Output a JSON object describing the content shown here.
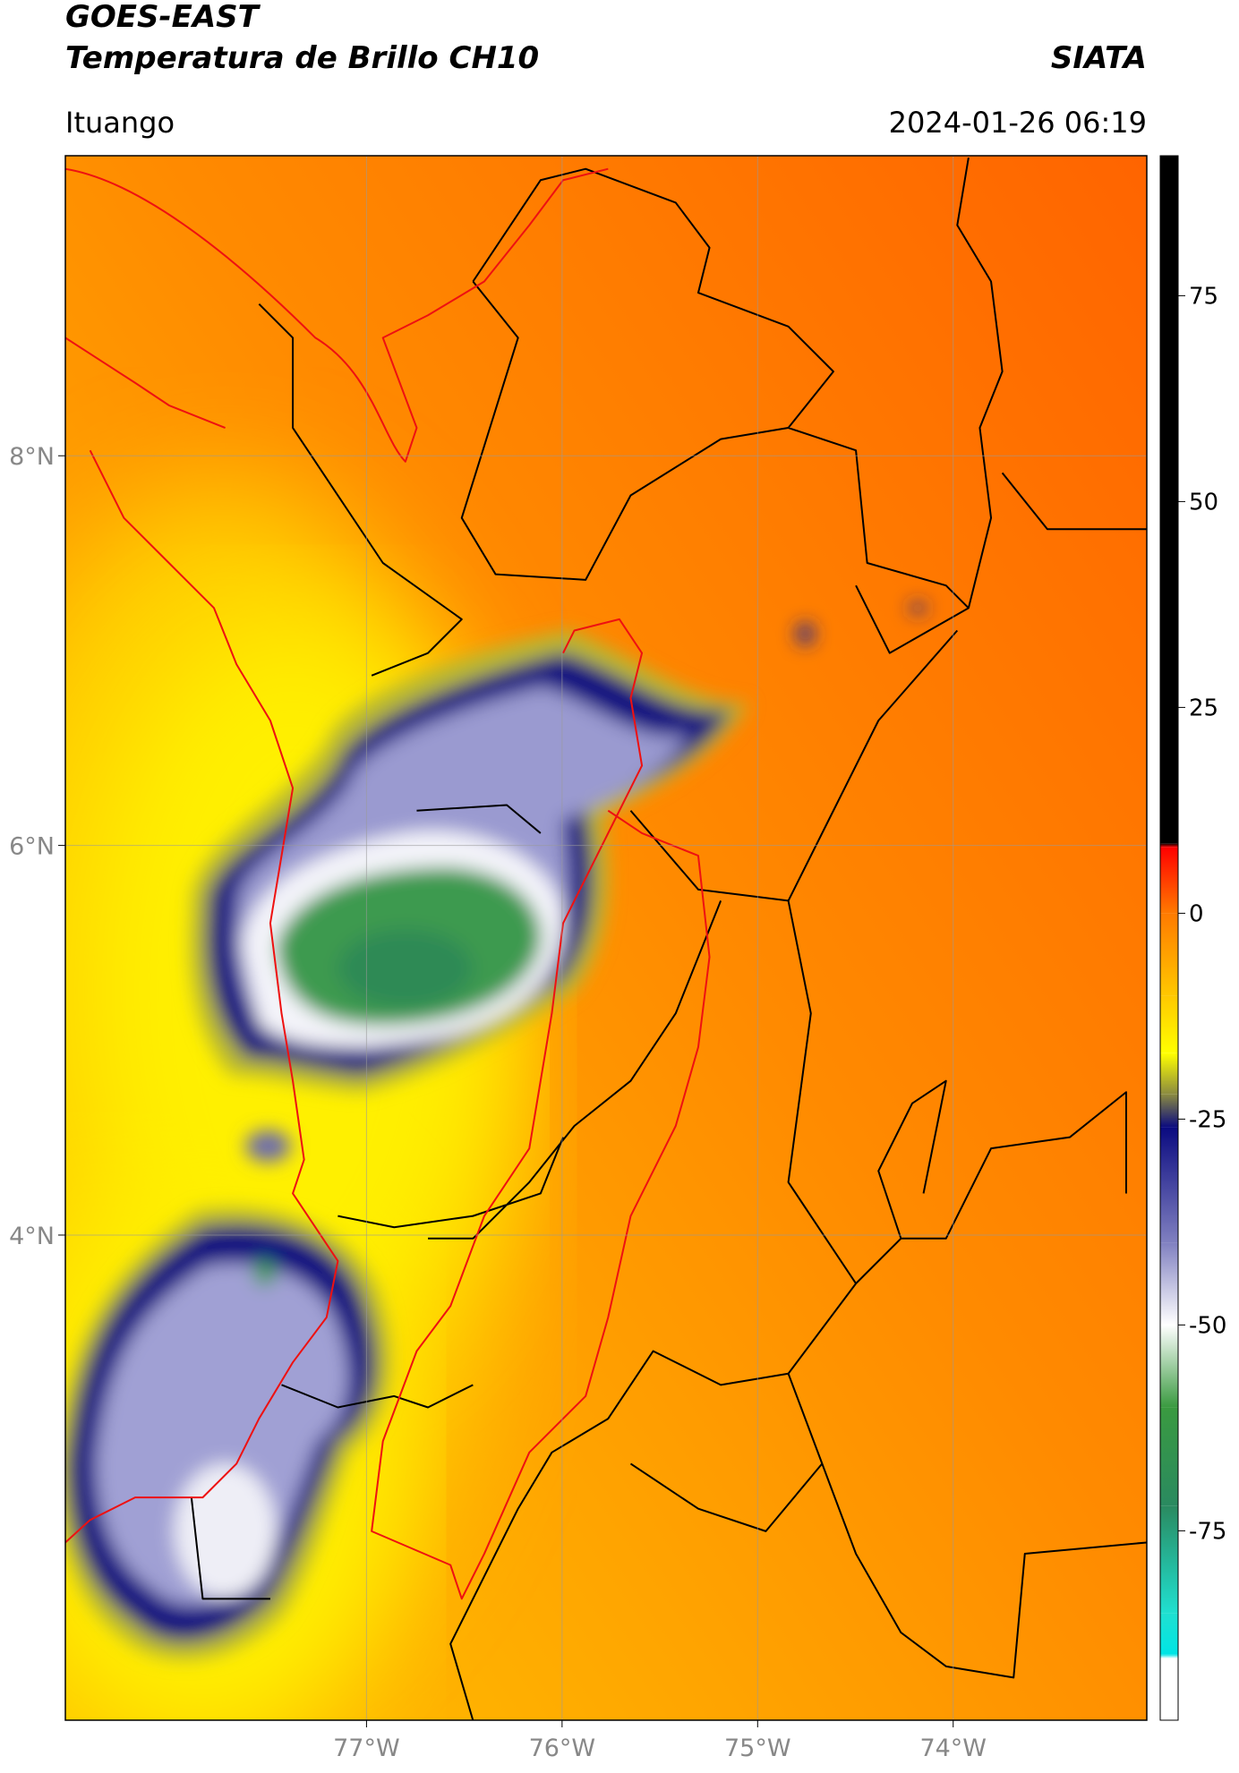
{
  "header": {
    "title_line1": "GOES-EAST",
    "title_line2": "Temperatura de Brillo CH10",
    "source": "SIATA",
    "location": "Ituango",
    "timestamp": "2024-01-26 06:19"
  },
  "map": {
    "xlim": [
      -78.54,
      -73.01
    ],
    "ylim": [
      1.51,
      9.54
    ],
    "grid": true,
    "xticks": [
      {
        "value": -77,
        "label": "77°W"
      },
      {
        "value": -76,
        "label": "76°W"
      },
      {
        "value": -75,
        "label": "75°W"
      },
      {
        "value": -74,
        "label": "74°W"
      }
    ],
    "yticks": [
      {
        "value": 8,
        "label": "8°N"
      },
      {
        "value": 6,
        "label": "6°N"
      },
      {
        "value": 4,
        "label": "4°N"
      }
    ]
  },
  "colorbar": {
    "lim": [
      -98,
      92
    ],
    "ticks": [
      75,
      50,
      25,
      0,
      -25,
      -50,
      -75
    ],
    "stops": [
      {
        "value": 92,
        "color": "#000000"
      },
      {
        "value": 8.5,
        "color": "#000000"
      },
      {
        "value": 8,
        "color": "#ff0000"
      },
      {
        "value": 0,
        "color": "#ff7a00"
      },
      {
        "value": -10,
        "color": "#ffc800"
      },
      {
        "value": -17,
        "color": "#ffff00"
      },
      {
        "value": -22,
        "color": "#8a8a40"
      },
      {
        "value": -26,
        "color": "#0a0a80"
      },
      {
        "value": -40,
        "color": "#8080c0"
      },
      {
        "value": -50,
        "color": "#ffffff"
      },
      {
        "value": -60,
        "color": "#3a9a40"
      },
      {
        "value": -72,
        "color": "#2a8a60"
      },
      {
        "value": -85,
        "color": "#20e0d0"
      },
      {
        "value": -90,
        "color": "#00e5e5"
      },
      {
        "value": -90.5,
        "color": "#ffffff"
      },
      {
        "value": -98,
        "color": "#ffffff"
      }
    ]
  }
}
